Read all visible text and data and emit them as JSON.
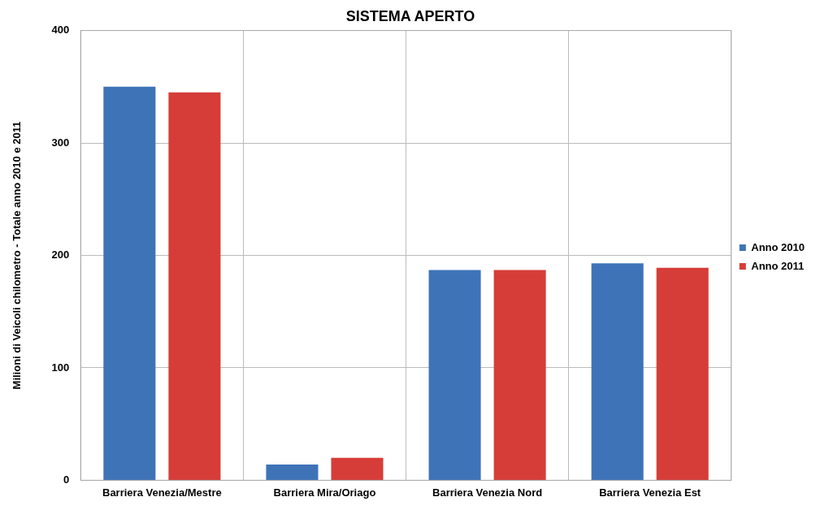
{
  "chart_data": {
    "type": "bar",
    "title": "SISTEMA APERTO",
    "ylabel": "Milioni di Veicoli chilometro - Totale anno 2010 e 2011",
    "categories": [
      "Barriera Venezia/Mestre",
      "Barriera Mira/Oriago",
      "Barriera Venezia Nord",
      "Barriera Venezia Est"
    ],
    "series": [
      {
        "name": "Anno 2010",
        "color": "#3f73b8",
        "values": [
          350,
          14,
          187,
          193
        ]
      },
      {
        "name": "Anno 2011",
        "color": "#d63d38",
        "values": [
          345,
          20,
          187,
          189
        ]
      }
    ],
    "ylim": [
      0,
      400
    ],
    "yticks": [
      0,
      100,
      200,
      300,
      400
    ],
    "grid": true,
    "legend": "right"
  }
}
